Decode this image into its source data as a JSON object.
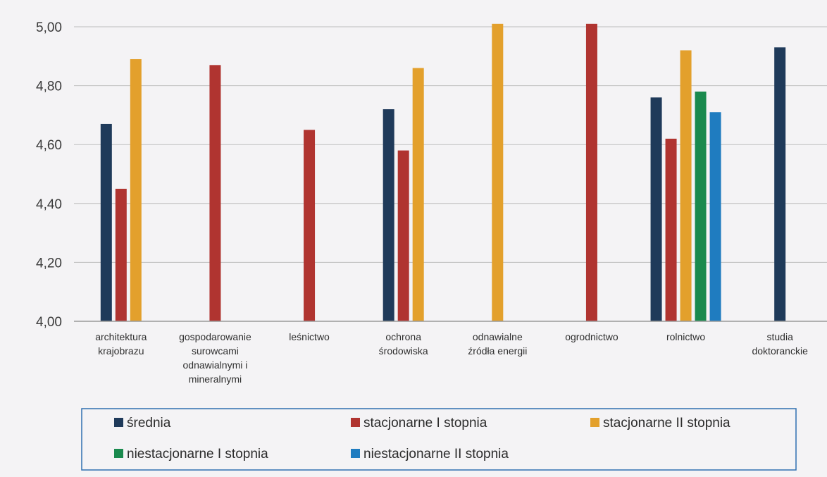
{
  "chart_data": {
    "type": "bar",
    "title": "",
    "xlabel": "",
    "ylabel": "",
    "ylim": [
      4.0,
      5.0
    ],
    "yticks": [
      "4,00",
      "4,20",
      "4,40",
      "4,60",
      "4,80",
      "5,00"
    ],
    "grid": true,
    "legend_position": "bottom",
    "categories": [
      [
        "architektura",
        "krajobrazu"
      ],
      [
        "gospodarowanie",
        "surowcami",
        "odnawialnymi i",
        "mineralnymi"
      ],
      [
        "leśnictwo"
      ],
      [
        "ochrona",
        "środowiska"
      ],
      [
        "odnawialne",
        "źródła energii"
      ],
      [
        "ogrodnictwo"
      ],
      [
        "rolnictwo"
      ],
      [
        "studia",
        "doktoranckie"
      ]
    ],
    "series": [
      {
        "name": "średnia",
        "color": "#1f3a5a",
        "values": [
          4.67,
          null,
          null,
          4.72,
          null,
          null,
          4.76,
          4.93
        ]
      },
      {
        "name": "stacjonarne I stopnia",
        "color": "#b03430",
        "values": [
          4.45,
          4.87,
          4.65,
          4.58,
          null,
          5.01,
          4.62,
          null
        ]
      },
      {
        "name": "stacjonarne II stopnia",
        "color": "#e3a02c",
        "values": [
          4.89,
          null,
          null,
          4.86,
          5.01,
          null,
          4.92,
          null
        ]
      },
      {
        "name": "niestacjonarne I stopnia",
        "color": "#1a8a4e",
        "values": [
          null,
          null,
          null,
          null,
          null,
          null,
          4.78,
          null
        ]
      },
      {
        "name": "niestacjonarne II stopnia",
        "color": "#1f7cc0",
        "values": [
          null,
          null,
          null,
          null,
          null,
          null,
          4.71,
          null
        ]
      }
    ]
  }
}
